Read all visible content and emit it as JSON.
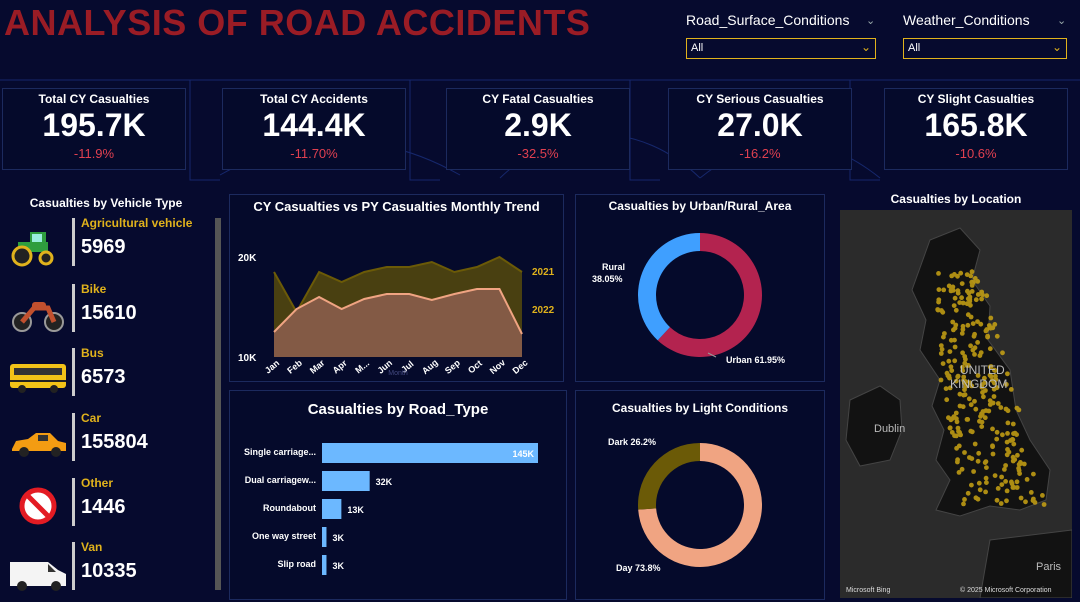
{
  "header": {
    "title": "ANALYSIS OF ROAD ACCIDENTS"
  },
  "slicers": [
    {
      "label": "Road_Surface_Conditions",
      "value": "All"
    },
    {
      "label": "Weather_Conditions",
      "value": "All"
    }
  ],
  "kpis": [
    {
      "label": "Total CY Casualties",
      "value": "195.7K",
      "delta": "-11.9%"
    },
    {
      "label": "Total CY Accidents",
      "value": "144.4K",
      "delta": "-11.70%"
    },
    {
      "label": "CY Fatal Casualties",
      "value": "2.9K",
      "delta": "-32.5%"
    },
    {
      "label": "CY Serious Casualties",
      "value": "27.0K",
      "delta": "-16.2%"
    },
    {
      "label": "CY Slight Casualties",
      "value": "165.8K",
      "delta": "-10.6%"
    }
  ],
  "vehicle_panel": {
    "title": "Casualties by Vehicle Type",
    "items": [
      {
        "name": "Agricultural vehicle",
        "value": "5969",
        "icon": "tractor-icon"
      },
      {
        "name": "Bike",
        "value": "15610",
        "icon": "motorbike-icon"
      },
      {
        "name": "Bus",
        "value": "6573",
        "icon": "bus-icon"
      },
      {
        "name": "Car",
        "value": "155804",
        "icon": "car-icon"
      },
      {
        "name": "Other",
        "value": "1446",
        "icon": "prohibited-icon"
      },
      {
        "name": "Van",
        "value": "10335",
        "icon": "van-icon"
      }
    ]
  },
  "trend_chart": {
    "title": "CY Casualties vs PY Casualties Monthly Trend",
    "xlabel": "Month"
  },
  "urban_chart": {
    "title": "Casualties by Urban/Rural_Area"
  },
  "road_chart": {
    "title": "Casualties by Road_Type"
  },
  "light_chart": {
    "title": "Casualties by Light Conditions"
  },
  "map_panel": {
    "title": "Casualties by Location",
    "labels": {
      "uk": "UNITED",
      "kingdom": "KINGDOM",
      "dublin": "Dublin",
      "paris": "Paris",
      "bing": "Microsoft Bing",
      "copyright": "© 2025 Microsoft Corporation"
    }
  },
  "colors": {
    "accent": "#e0b21c",
    "title_red": "#9a1c25",
    "negative": "#e04050",
    "bg": "#060a2e"
  },
  "chart_data": [
    {
      "type": "area",
      "title": "CY Casualties vs PY Casualties Monthly Trend",
      "xlabel": "Month",
      "categories": [
        "Jan",
        "Feb",
        "Mar",
        "Apr",
        "May",
        "Jun",
        "Jul",
        "Aug",
        "Sep",
        "Oct",
        "Nov",
        "Dec"
      ],
      "tick_labels": [
        "Jan",
        "Feb",
        "Mar",
        "Apr",
        "M...",
        "Jun",
        "Jul",
        "Aug",
        "Sep",
        "Oct",
        "Nov",
        "Dec"
      ],
      "ylim": [
        10000,
        22000
      ],
      "yticks": [
        "20K",
        "10K"
      ],
      "series": [
        {
          "name": "2021",
          "values": [
            18500,
            14500,
            18500,
            17500,
            18500,
            19000,
            19000,
            19500,
            18500,
            19000,
            20000,
            18500
          ]
        },
        {
          "name": "2022",
          "values": [
            12500,
            14800,
            16000,
            14800,
            15800,
            16300,
            16300,
            15700,
            16300,
            16800,
            16800,
            12300
          ]
        }
      ]
    },
    {
      "type": "pie",
      "title": "Casualties by Urban/Rural_Area",
      "labels": [
        "Urban",
        "Rural"
      ],
      "values": [
        61.95,
        38.05
      ],
      "display": [
        "Urban 61.95%",
        "Rural 38.05%"
      ],
      "colors": [
        "#b3234f",
        "#3f9fff"
      ]
    },
    {
      "type": "bar",
      "title": "Casualties by Road_Type",
      "categories": [
        "Single carriage...",
        "Dual carriagew...",
        "Roundabout",
        "One way street",
        "Slip road"
      ],
      "values": [
        145,
        32,
        13,
        3,
        3
      ],
      "labels": [
        "145K",
        "32K",
        "13K",
        "3K",
        "3K"
      ]
    },
    {
      "type": "pie",
      "title": "Casualties by Light Conditions",
      "labels": [
        "Day",
        "Dark"
      ],
      "values": [
        73.8,
        26.2
      ],
      "display": [
        "Day 73.8%",
        "Dark 26.2%"
      ],
      "colors": [
        "#f0a482",
        "#6b5a07"
      ]
    }
  ]
}
